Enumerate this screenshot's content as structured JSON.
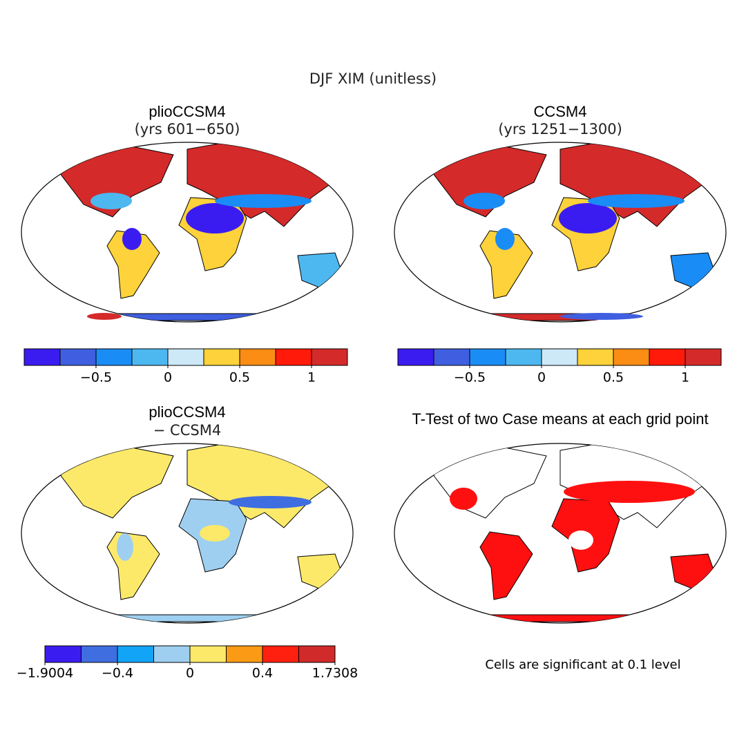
{
  "title": "DJF XIM (unitless)",
  "panels": [
    {
      "title": "plioCCSM4",
      "subtitle": "(yrs 601−650)",
      "colorbar": {
        "colors": [
          "#3b1cf0",
          "#3f5fe0",
          "#1a8cf5",
          "#4db8f0",
          "#cde9f7",
          "#fdd23a",
          "#fb8c14",
          "#ff1a0a",
          "#d42a2a"
        ],
        "bins": [
          -1,
          -0.75,
          -0.5,
          -0.25,
          0,
          0.25,
          0.5,
          0.75,
          1,
          1.25
        ],
        "ticks": [
          {
            "value": -0.5,
            "label": "−0.5"
          },
          0,
          0.5,
          1
        ]
      }
    },
    {
      "title": "CCSM4",
      "subtitle": "(yrs 1251−1300)",
      "colorbar": {
        "colors": [
          "#3b1cf0",
          "#3f5fe0",
          "#1a8cf5",
          "#4db8f0",
          "#cde9f7",
          "#fdd23a",
          "#fb8c14",
          "#ff1a0a",
          "#d42a2a"
        ],
        "bins": [
          -1,
          -0.75,
          -0.5,
          -0.25,
          0,
          0.25,
          0.5,
          0.75,
          1,
          1.25
        ],
        "ticks": [
          {
            "value": -0.5,
            "label": "−0.5"
          },
          0,
          0.5,
          1
        ]
      }
    },
    {
      "title": "plioCCSM4",
      "subtitle": "− CCSM4",
      "colorbar": {
        "colors": [
          "#3b1cf0",
          "#3f6ee0",
          "#12a4f7",
          "#9ecff0",
          "#fce96a",
          "#fb9a14",
          "#ff2010",
          "#d02a2a"
        ],
        "bins": [
          -1.9004,
          -0.8,
          -0.4,
          -0.2,
          0,
          0.2,
          0.4,
          0.8,
          1.7308
        ],
        "ticks": [
          {
            "value": -1.9004,
            "label": "−1.9004"
          },
          {
            "value": -0.4,
            "label": "−0.4"
          },
          0,
          0.4,
          1.7308
        ]
      }
    },
    {
      "title": "T-Test of two Case means at each grid point",
      "note": "Cells are significant at 0.1 level"
    }
  ]
}
